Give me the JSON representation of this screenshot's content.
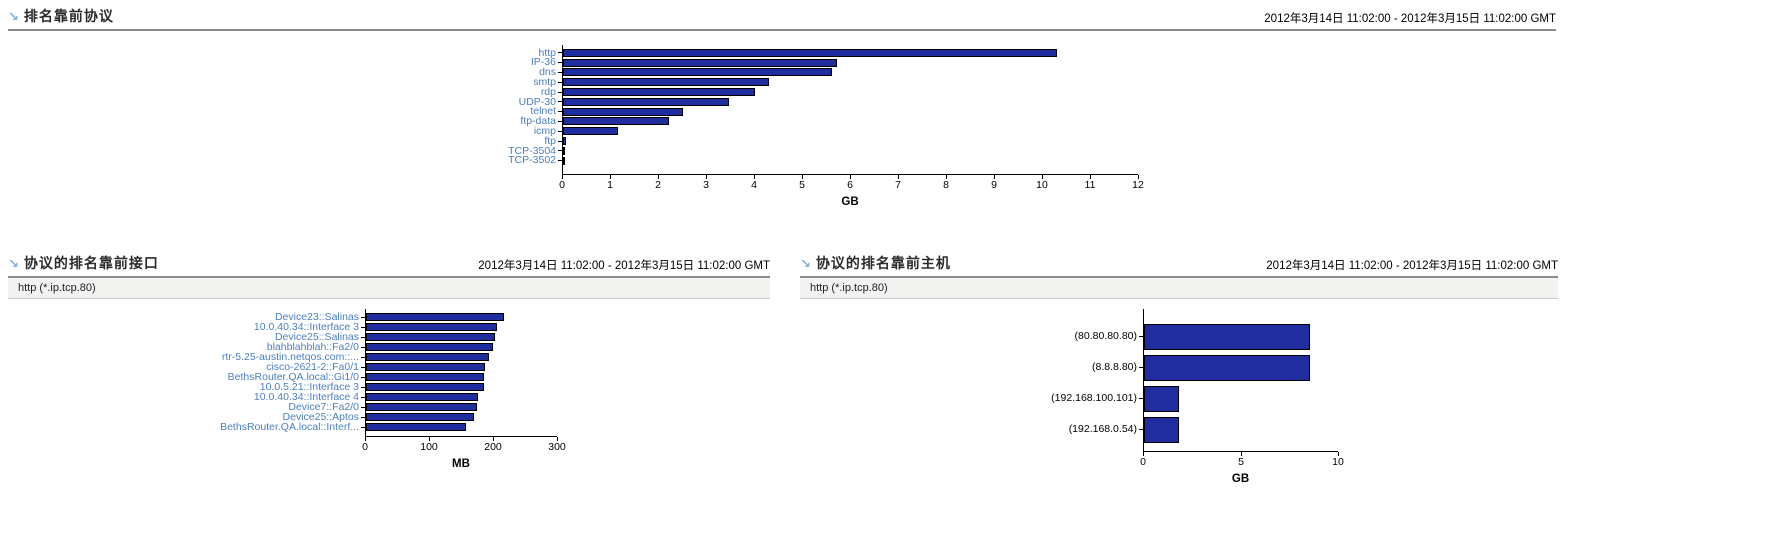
{
  "colors": {
    "page_bg": "#ffffff",
    "bar_fill": "#1f2d9e",
    "bar_border": "#000000",
    "link_label": "#4a7fc1",
    "plain_label": "#000000",
    "title_text": "#2b2b2b",
    "timestamp_text": "#000000",
    "header_rule": "#8c8c8c",
    "filter_bg": "#f2f2f1",
    "filter_border": "#c8c8c8",
    "drill_icon": "#85aed8"
  },
  "icons": {
    "drilldown_glyph": "↘"
  },
  "panels": [
    {
      "title": "排名靠前协议",
      "timestamp": "2012年3月14日 11:02:00 - 2012年3月15日 11:02:00 GMT",
      "chart_data": {
        "type": "bar",
        "orientation": "horizontal",
        "title": "排名靠前协议",
        "categories": [
          "http",
          "IP-36",
          "dns",
          "smtp",
          "rdp",
          "UDP-30",
          "telnet",
          "ftp-data",
          "icmp",
          "ftp",
          "TCP-3504",
          "TCP-3502"
        ],
        "values": [
          10.3,
          5.7,
          5.6,
          4.3,
          4.0,
          3.45,
          2.5,
          2.2,
          1.15,
          0.06,
          0.05,
          0.05
        ],
        "xlabel": "GB",
        "xlim": [
          0,
          12
        ],
        "xticks": [
          0,
          1,
          2,
          3,
          4,
          5,
          6,
          7,
          8,
          9,
          10,
          11,
          12
        ],
        "label_style": "link",
        "grid": false,
        "legend": "none"
      }
    },
    {
      "title": "协议的排名靠前接口",
      "timestamp": "2012年3月14日 11:02:00 - 2012年3月15日 11:02:00 GMT",
      "filter": "http (*.ip.tcp.80)",
      "chart_data": {
        "type": "bar",
        "orientation": "horizontal",
        "title": "协议的排名靠前接口",
        "categories": [
          "Device23::Salinas",
          "10.0.40.34::Interface 3",
          "Device25::Salinas",
          "blahblahblah::Fa2/0",
          "rtr-5.25-austin.netqos.com::...",
          "cisco-2621-2::Fa0/1",
          "BethsRouter.QA.local::Gi1/0",
          "10.0.5.21::Interface 3",
          "10.0.40.34::Interface 4",
          "Device7::Fa2/0",
          "Device25::Aptos",
          "BethsRouter.QA.local::Interf..."
        ],
        "values": [
          215,
          205,
          201,
          198,
          192,
          186,
          185,
          184,
          175,
          173,
          168,
          156
        ],
        "xlabel": "MB",
        "xlim": [
          0,
          300
        ],
        "xticks": [
          0,
          100,
          200,
          300
        ],
        "label_style": "link",
        "grid": false,
        "legend": "none"
      }
    },
    {
      "title": "协议的排名靠前主机",
      "timestamp": "2012年3月14日 11:02:00 - 2012年3月15日 11:02:00 GMT",
      "filter": "http (*.ip.tcp.80)",
      "chart_data": {
        "type": "bar",
        "orientation": "horizontal",
        "title": "协议的排名靠前主机",
        "categories": [
          "(80.80.80.80)",
          "(8.8.8.80)",
          "(192.168.100.101)",
          "(192.168.0.54)"
        ],
        "values": [
          8.5,
          8.5,
          1.8,
          1.8
        ],
        "xlabel": "GB",
        "xlim": [
          0,
          10
        ],
        "xticks": [
          0,
          5,
          10
        ],
        "label_style": "plain",
        "grid": false,
        "legend": "none"
      }
    }
  ]
}
